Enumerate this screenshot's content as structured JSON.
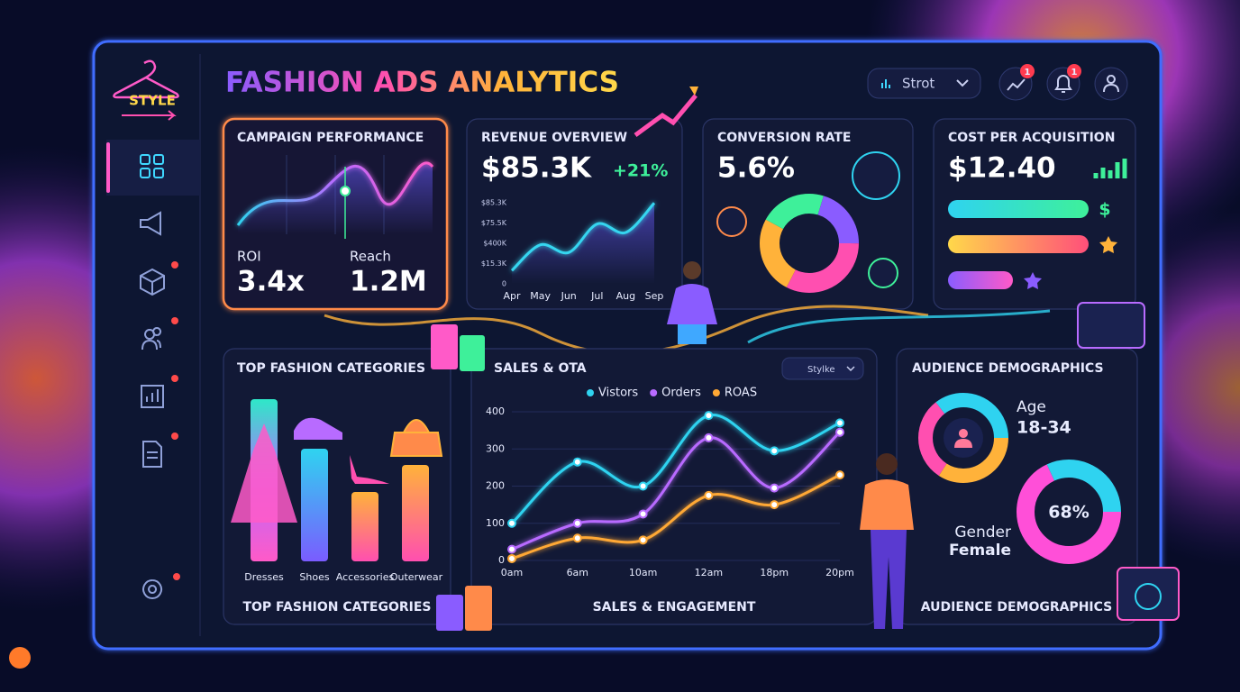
{
  "header": {
    "logo": "STYLE",
    "title": "FASHION ADS ANALYTICS",
    "dropdown": "Strot",
    "badges": [
      "1",
      "1"
    ]
  },
  "campaign": {
    "title": "CAMPAIGN PERFORMANCE",
    "roi_label": "ROI",
    "roi": "3.4x",
    "reach_label": "Reach",
    "reach": "1.2M"
  },
  "conversion": {
    "title": "CONVERSION RATE",
    "value": "5.6%"
  },
  "cpa": {
    "title": "COST PER ACQUISITION",
    "value": "$12.40",
    "icons": [
      "$"
    ]
  },
  "categories": {
    "title": "TOP FASHION CATEGORIES",
    "labels": [
      "Dresses",
      "Shoes",
      "Accessories",
      "Outerwear"
    ],
    "footer": "TOP FASHION CATEGORIES"
  },
  "audience": {
    "title": "AUDIENCE DEMOGRAPHICS",
    "age_label": "Age",
    "age": "18-34",
    "gender_label": "Gender",
    "gender": "Female",
    "share": "68%",
    "footer": "AUDIENCE DEMOGRAPHICS"
  },
  "chart_data": [
    {
      "type": "line",
      "title": "REVENUE OVERVIEW",
      "total": "$85.3K",
      "change": "+21%",
      "y_labels": [
        "$85.3K",
        "$75.5K",
        "$400K",
        "$15.3K",
        "0"
      ],
      "ylim": [
        0,
        85.3
      ],
      "categories": [
        "Apr",
        "May",
        "Jun",
        "Jul",
        "Aug",
        "Sep"
      ],
      "values": [
        14,
        41,
        33,
        63,
        54,
        85
      ],
      "color": "#36d6f0"
    },
    {
      "type": "line",
      "title": "SALES & OTA",
      "dropdown": "Stylke",
      "footer": "SALES & ENGAGEMENT",
      "categories": [
        "0am",
        "6am",
        "10am",
        "12am",
        "18pm",
        "20pm"
      ],
      "ylim": [
        0,
        400
      ],
      "yticks": [
        0,
        100,
        200,
        300,
        400
      ],
      "series": [
        {
          "name": "Vistors",
          "color": "#2fd3f0",
          "values": [
            100,
            265,
            200,
            390,
            295,
            370
          ]
        },
        {
          "name": "Orders",
          "color": "#b86bff",
          "values": [
            30,
            100,
            125,
            330,
            195,
            345
          ]
        },
        {
          "name": "ROAS",
          "color": "#ffa834",
          "values": [
            5,
            60,
            55,
            175,
            150,
            230
          ]
        }
      ]
    }
  ]
}
